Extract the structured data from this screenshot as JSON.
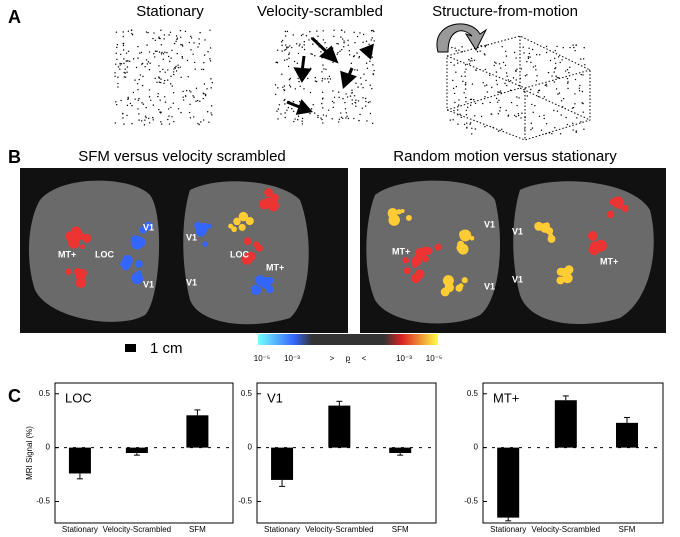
{
  "panel_a": {
    "letter": "A",
    "titles": [
      "Stationary",
      "Velocity-scrambled",
      "Structure-from-motion"
    ]
  },
  "panel_b": {
    "letter": "B",
    "titles": [
      "SFM versus velocity scrambled",
      "Random motion versus stationary"
    ],
    "labels": [
      "MT+",
      "LOC",
      "V1",
      "V1",
      "V1",
      "V1",
      "LOC",
      "MT+",
      "MT+",
      "V1",
      "V1",
      "V1",
      "V1",
      "MT+"
    ],
    "scale": "1 cm",
    "colorbar": {
      "left": [
        "10⁻⁵",
        "10⁻³"
      ],
      "gt": ">",
      "p": "p",
      "lt": "<",
      "right": [
        "10⁻³",
        "10⁻⁵"
      ]
    }
  },
  "panel_c": {
    "letter": "C",
    "ylabel": "MRI Signal (%)"
  },
  "chart_data": [
    {
      "type": "bar",
      "title": "LOC",
      "categories": [
        "Stationary",
        "Velocity-Scrambled",
        "SFM"
      ],
      "values": [
        -0.24,
        -0.05,
        0.3
      ],
      "errors": [
        0.05,
        0.02,
        0.05
      ],
      "color": "#000000",
      "ylim": [
        -0.7,
        0.6
      ],
      "yticks": [
        0.5,
        0,
        -0.5
      ]
    },
    {
      "type": "bar",
      "title": "V1",
      "categories": [
        "Stationary",
        "Velocity-Scrambled",
        "SFM"
      ],
      "values": [
        -0.3,
        0.39,
        -0.05
      ],
      "errors": [
        0.06,
        0.04,
        0.02
      ],
      "color": "#000000",
      "ylim": [
        -0.7,
        0.6
      ],
      "yticks": [
        0.5,
        0,
        -0.5
      ]
    },
    {
      "type": "bar",
      "title": "MT+",
      "categories": [
        "Stationary",
        "Velocity-Scrambled",
        "SFM"
      ],
      "values": [
        -0.65,
        0.44,
        0.23
      ],
      "errors": [
        0.03,
        0.04,
        0.05
      ],
      "color": "#000000",
      "ylim": [
        -0.7,
        0.6
      ],
      "yticks": [
        0.5,
        0,
        -0.5
      ]
    }
  ]
}
